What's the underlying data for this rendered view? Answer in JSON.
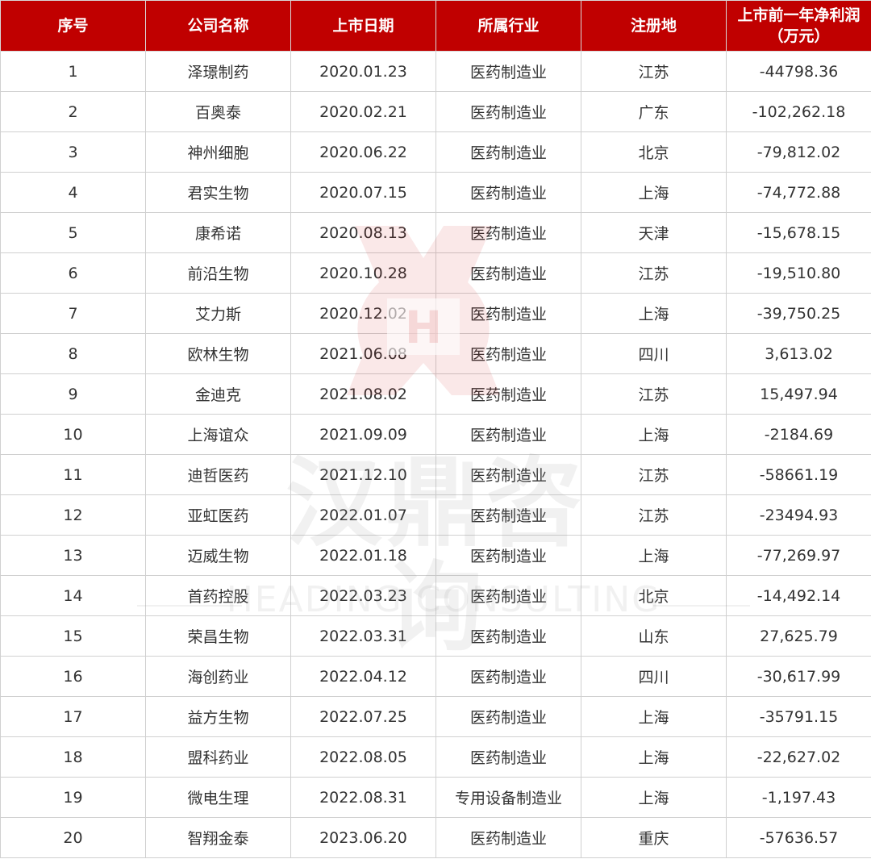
{
  "table": {
    "headers": [
      "序号",
      "公司名称",
      "上市日期",
      "所属行业",
      "注册地",
      "上市前一年净利润（万元）"
    ],
    "rows": [
      [
        "1",
        "泽璟制药",
        "2020.01.23",
        "医药制造业",
        "江苏",
        "-44798.36"
      ],
      [
        "2",
        "百奥泰",
        "2020.02.21",
        "医药制造业",
        "广东",
        "-102,262.18"
      ],
      [
        "3",
        "神州细胞",
        "2020.06.22",
        "医药制造业",
        "北京",
        "-79,812.02"
      ],
      [
        "4",
        "君实生物",
        "2020.07.15",
        "医药制造业",
        "上海",
        "-74,772.88"
      ],
      [
        "5",
        "康希诺",
        "2020.08.13",
        "医药制造业",
        "天津",
        "-15,678.15"
      ],
      [
        "6",
        "前沿生物",
        "2020.10.28",
        "医药制造业",
        "江苏",
        "-19,510.80"
      ],
      [
        "7",
        "艾力斯",
        "2020.12.02",
        "医药制造业",
        "上海",
        "-39,750.25"
      ],
      [
        "8",
        "欧林生物",
        "2021.06.08",
        "医药制造业",
        "四川",
        "3,613.02"
      ],
      [
        "9",
        "金迪克",
        "2021.08.02",
        "医药制造业",
        "江苏",
        "15,497.94"
      ],
      [
        "10",
        "上海谊众",
        "2021.09.09",
        "医药制造业",
        "上海",
        "-2184.69"
      ],
      [
        "11",
        "迪哲医药",
        "2021.12.10",
        "医药制造业",
        "江苏",
        "-58661.19"
      ],
      [
        "12",
        "亚虹医药",
        "2022.01.07",
        "医药制造业",
        "江苏",
        "-23494.93"
      ],
      [
        "13",
        "迈威生物",
        "2022.01.18",
        "医药制造业",
        "上海",
        "-77,269.97"
      ],
      [
        "14",
        "首药控股",
        "2022.03.23",
        "医药制造业",
        "北京",
        "-14,492.14"
      ],
      [
        "15",
        "荣昌生物",
        "2022.03.31",
        "医药制造业",
        "山东",
        "27,625.79"
      ],
      [
        "16",
        "海创药业",
        "2022.04.12",
        "医药制造业",
        "四川",
        "-30,617.99"
      ],
      [
        "17",
        "益方生物",
        "2022.07.25",
        "医药制造业",
        "上海",
        "-35791.15"
      ],
      [
        "18",
        "盟科药业",
        "2022.08.05",
        "医药制造业",
        "上海",
        "-22,627.02"
      ],
      [
        "19",
        "微电生理",
        "2022.08.31",
        "专用设备制造业",
        "上海",
        "-1,197.43"
      ],
      [
        "20",
        "智翔金泰",
        "2023.06.20",
        "医药制造业",
        "重庆",
        "-57636.57"
      ]
    ]
  },
  "watermark": {
    "cn": "汉鼎咨询",
    "en": "HEADING CONSULTING",
    "color": "#c00000"
  },
  "colors": {
    "header_bg": "#c00000",
    "header_text": "#ffffff",
    "border": "#d0d0d0"
  }
}
